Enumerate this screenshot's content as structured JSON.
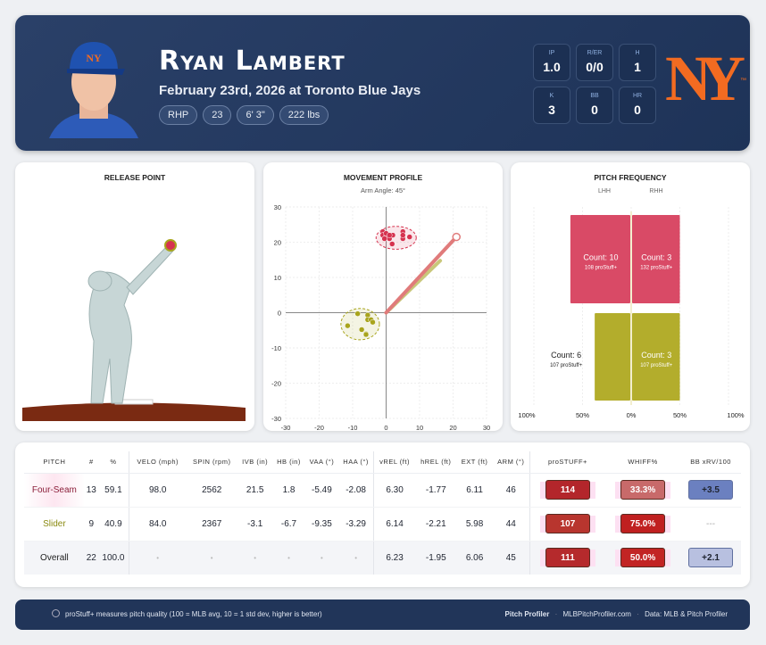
{
  "player": {
    "name": "Ryan Lambert",
    "game": "February 23rd, 2026 at Toronto Blue Jays",
    "chips": [
      "RHP",
      "23",
      "6' 3\"",
      "222 lbs"
    ]
  },
  "stats": [
    {
      "label": "IP",
      "value": "1.0"
    },
    {
      "label": "R/ER",
      "value": "0/0"
    },
    {
      "label": "H",
      "value": "1"
    },
    {
      "label": "K",
      "value": "3"
    },
    {
      "label": "BB",
      "value": "0"
    },
    {
      "label": "HR",
      "value": "0"
    }
  ],
  "team": {
    "logo_text": "NY",
    "tm": "™",
    "color": "#f26b21"
  },
  "release_title": "RELEASE POINT",
  "chart_data": [
    {
      "type": "scatter",
      "title": "MOVEMENT PROFILE",
      "subtitle": "Arm Angle: 45°",
      "xlim": [
        -30,
        30
      ],
      "ylim": [
        -30,
        30
      ],
      "xticks": [
        -30,
        -20,
        -10,
        0,
        10,
        20,
        30
      ],
      "yticks": [
        30,
        20,
        10,
        0,
        -10,
        -20,
        -30
      ],
      "grid": true,
      "series": [
        {
          "name": "Four-Seam",
          "color": "#d6334f",
          "points": [
            [
              -1,
              23
            ],
            [
              -1,
              22
            ],
            [
              0,
              21.5
            ],
            [
              1,
              21
            ],
            [
              0,
              22.5
            ],
            [
              2,
              22
            ],
            [
              1.8,
              19.5
            ],
            [
              5,
              23
            ],
            [
              5,
              21
            ],
            [
              5,
              22
            ],
            [
              7,
              21.5
            ],
            [
              -0.5,
              21
            ],
            [
              1,
              22
            ]
          ]
        },
        {
          "name": "Slider",
          "color": "#a8a41c",
          "points": [
            [
              -8.5,
              -0.3
            ],
            [
              -5.5,
              -0.7
            ],
            [
              -5.5,
              -2
            ],
            [
              -4.5,
              -2
            ],
            [
              -4,
              -2.7
            ],
            [
              -11.5,
              -3.7
            ],
            [
              -7.3,
              -4.8
            ],
            [
              -6,
              -6
            ],
            [
              -6,
              -6.2
            ]
          ]
        }
      ],
      "arm_angle_deg": 45
    },
    {
      "type": "bar",
      "title": "PITCH FREQUENCY",
      "sides": [
        "LHH",
        "RHH"
      ],
      "xticks": [
        "100%",
        "50%",
        "0%",
        "50%",
        "100%"
      ],
      "rows": [
        {
          "pitch": "Four-Seam",
          "color": "#d94a66",
          "lhh": {
            "pct": 62.5,
            "count": "Count: 10",
            "stuff": "108 proStuff+"
          },
          "rhh": {
            "pct": 50,
            "count": "Count: 3",
            "stuff": "132 proStuff+"
          }
        },
        {
          "pitch": "Slider",
          "color": "#b3ad2c",
          "lhh": {
            "pct": 37.5,
            "count": "Count: 6",
            "stuff": "107 proStuff+"
          },
          "rhh": {
            "pct": 50,
            "count": "Count: 3",
            "stuff": "107 proStuff+"
          }
        }
      ]
    }
  ],
  "table": {
    "headers": [
      "PITCH",
      "#",
      "%",
      "VELO (mph)",
      "SPIN (rpm)",
      "IVB (in)",
      "HB (in)",
      "VAA (°)",
      "HAA (°)",
      "vREL (ft)",
      "hREL (ft)",
      "EXT (ft)",
      "ARM (°)",
      "proSTUFF+",
      "WHIFF%",
      "BB xRV/100"
    ],
    "rows": [
      {
        "cells": [
          "Four-Seam",
          "13",
          "59.1",
          "98.0",
          "2562",
          "21.5",
          "1.8",
          "-5.49",
          "-2.08",
          "6.30",
          "-1.77",
          "6.11",
          "46"
        ],
        "stuff": "114",
        "whiff": "33.3%",
        "xrv": "+3.5",
        "color": "#8b1f3a",
        "stuff_bg": "#b3262b",
        "whiff_bg": "#c86a6a",
        "xrv_bg": "#6b80c0"
      },
      {
        "cells": [
          "Slider",
          "9",
          "40.9",
          "84.0",
          "2367",
          "-3.1",
          "-6.7",
          "-9.35",
          "-3.29",
          "6.14",
          "-2.21",
          "5.98",
          "44"
        ],
        "stuff": "107",
        "whiff": "75.0%",
        "xrv": "---",
        "color": "#8a8a10",
        "stuff_bg": "#b8352e",
        "whiff_bg": "#c02020",
        "xrv_bg": ""
      },
      {
        "cells": [
          "Overall",
          "22",
          "100.0",
          "•",
          "•",
          "•",
          "•",
          "•",
          "•",
          "6.23",
          "-1.95",
          "6.06",
          "45"
        ],
        "stuff": "111",
        "whiff": "50.0%",
        "xrv": "+2.1",
        "color": "#222",
        "stuff_bg": "#b52a2c",
        "whiff_bg": "#c22424",
        "xrv_bg": "#b8c0e0"
      }
    ]
  },
  "footer": {
    "note": "proStuff+ measures pitch quality (100 = MLB avg, 10 = 1 std dev, higher is better)",
    "brand": "Pitch Profiler",
    "site": "MLBPitchProfiler.com",
    "source": "Data: MLB & Pitch Profiler",
    "sep": "·"
  }
}
